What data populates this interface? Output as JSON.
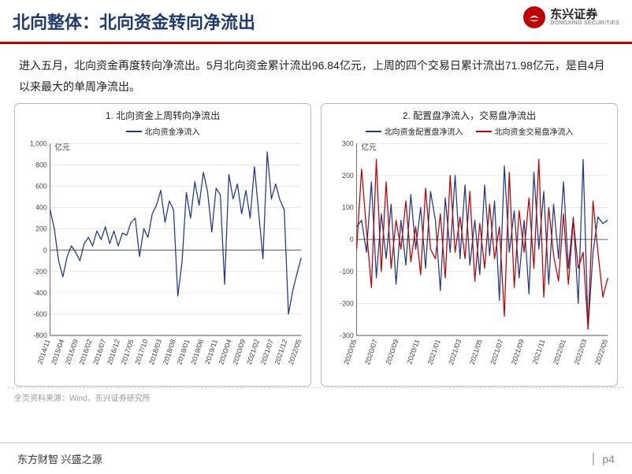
{
  "header": {
    "title": "北向整体：北向资金转向净流出"
  },
  "logo": {
    "name_cn": "东兴证券",
    "name_en": "DONGXING SECURITIES"
  },
  "body_text": "进入五月，北向资金再度转向净流出。5月北向资金累计流出96.84亿元，上周的四个交易日累计流出71.98亿元，是自4月以来最大的单周净流出。",
  "chart1": {
    "type": "line",
    "title": "1. 北向资金上周转向净流出",
    "legend": [
      {
        "label": "北向资金净流入",
        "color": "#1f3a8a"
      }
    ],
    "y_unit": "亿元",
    "ylim": [
      -800,
      1000
    ],
    "ytick_step": 200,
    "x_labels": [
      "2014/11",
      "2015/04",
      "2015/09",
      "2016/02",
      "2016/07",
      "2016/12",
      "2017/05",
      "2017/10",
      "2018/03",
      "2018/08",
      "2019/01",
      "2019/06",
      "2019/11",
      "2020/04",
      "2020/09",
      "2021/02",
      "2021/07",
      "2021/12",
      "2022/05"
    ],
    "series1_color": "#1f3a8a",
    "series1": [
      380,
      200,
      -100,
      -250,
      -60,
      40,
      -20,
      -100,
      60,
      120,
      40,
      180,
      100,
      220,
      60,
      180,
      40,
      160,
      140,
      260,
      300,
      -60,
      200,
      120,
      340,
      420,
      560,
      260,
      460,
      380,
      -430,
      -110,
      540,
      300,
      640,
      420,
      730,
      550,
      170,
      580,
      520,
      -320,
      710,
      480,
      620,
      340,
      560,
      300,
      780,
      350,
      -80,
      920,
      480,
      620,
      470,
      380,
      -600,
      -380,
      -220,
      -72
    ],
    "background_color": "#ffffff",
    "grid_color": "#d8d8d8",
    "axis_color": "#666666"
  },
  "chart2": {
    "type": "line",
    "title": "2. 配置盘净流入，交易盘净流出",
    "legend": [
      {
        "label": "北向资金配置盘净流入",
        "color": "#1f3a8a"
      },
      {
        "label": "北向资金交易盘净流入",
        "color": "#c00000"
      }
    ],
    "y_unit": "亿元",
    "ylim": [
      -300,
      300
    ],
    "ytick_step": 100,
    "x_labels": [
      "2020/05",
      "2020/07",
      "2020/09",
      "2020/11",
      "2021/01",
      "2021/03",
      "2021/05",
      "2021/07",
      "2021/09",
      "2021/11",
      "2022/01",
      "2022/03",
      "2022/05"
    ],
    "series1_color": "#1f3a8a",
    "series1": [
      40,
      60,
      -40,
      180,
      -120,
      80,
      -60,
      110,
      -140,
      60,
      -80,
      140,
      -30,
      100,
      -90,
      150,
      60,
      -160,
      130,
      -40,
      200,
      -60,
      170,
      -80,
      60,
      -110,
      170,
      -50,
      120,
      -190,
      230,
      -40,
      90,
      -120,
      60,
      -170,
      210,
      -30,
      150,
      -140,
      110,
      -60,
      180,
      -90,
      70,
      -200,
      250,
      -280,
      -40,
      70,
      50,
      60
    ],
    "series2_color": "#c00000",
    "series2": [
      -30,
      220,
      30,
      -150,
      250,
      -100,
      180,
      -90,
      60,
      -30,
      120,
      -70,
      40,
      -110,
      160,
      -30,
      -60,
      80,
      -120,
      200,
      -40,
      70,
      -60,
      150,
      -130,
      50,
      -90,
      110,
      -60,
      40,
      -240,
      210,
      -150,
      90,
      -40,
      130,
      -90,
      250,
      -180,
      100,
      -50,
      -130,
      80,
      -140,
      60,
      -90,
      -40,
      -280,
      120,
      -40,
      -180,
      -120
    ],
    "background_color": "#ffffff",
    "grid_color": "#d8d8d8",
    "axis_color": "#666666"
  },
  "source": "全页资料来源：Wind、东兴证券研究所",
  "footer": {
    "slogan": "东方财智 兴盛之源",
    "page": "p4"
  },
  "colors": {
    "accent_red": "#c00000",
    "title_blue": "#1f3a6e"
  }
}
